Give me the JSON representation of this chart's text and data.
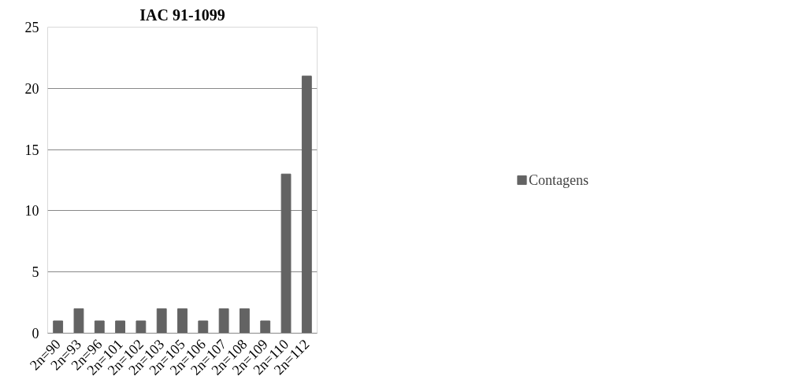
{
  "chart_data": {
    "type": "bar",
    "title": "IAC 91-1099",
    "categories": [
      "2n=90",
      "2n=93",
      "2n=96",
      "2n=101",
      "2n=102",
      "2n=103",
      "2n=105",
      "2n=106",
      "2n=107",
      "2n=108",
      "2n=109",
      "2n=110",
      "2n=112"
    ],
    "series": [
      {
        "name": "Contagens",
        "color": "#636363",
        "values": [
          1,
          2,
          1,
          1,
          1,
          2,
          2,
          1,
          2,
          2,
          1,
          13,
          21
        ]
      }
    ],
    "ylim": [
      0,
      25
    ],
    "yticks": [
      0,
      5,
      10,
      15,
      20,
      25
    ],
    "grid": "y",
    "legend": "right"
  }
}
